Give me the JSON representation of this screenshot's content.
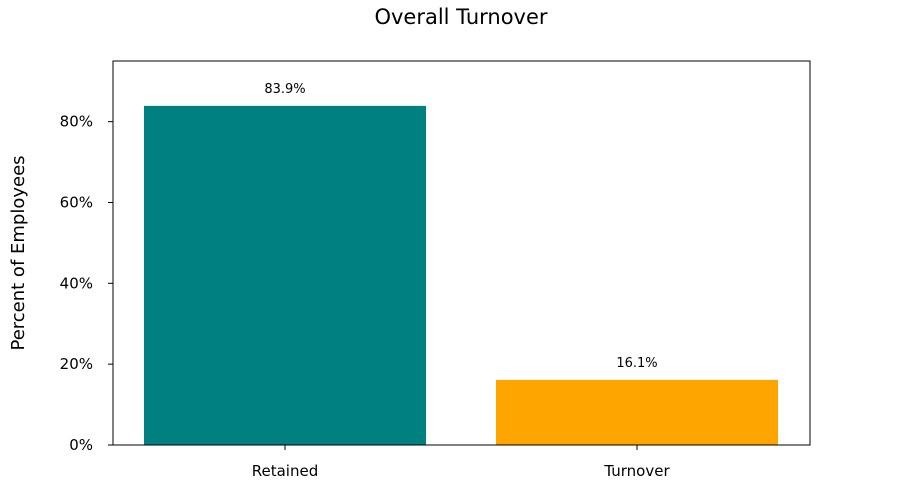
{
  "chart_data": {
    "type": "bar",
    "title": "Overall Turnover",
    "xlabel": "",
    "ylabel": "Percent of Employees",
    "categories": [
      "Retained",
      "Turnover"
    ],
    "values": [
      83.9,
      16.1
    ],
    "data_labels": [
      "83.9%",
      "16.1%"
    ],
    "colors": [
      "#008080",
      "#FFA500"
    ],
    "ylim": [
      0,
      95
    ],
    "yticks": [
      0,
      20,
      40,
      60,
      80
    ],
    "ytick_labels": [
      "0%",
      "20%",
      "40%",
      "60%",
      "80%"
    ],
    "grid": false,
    "legend": "none"
  }
}
